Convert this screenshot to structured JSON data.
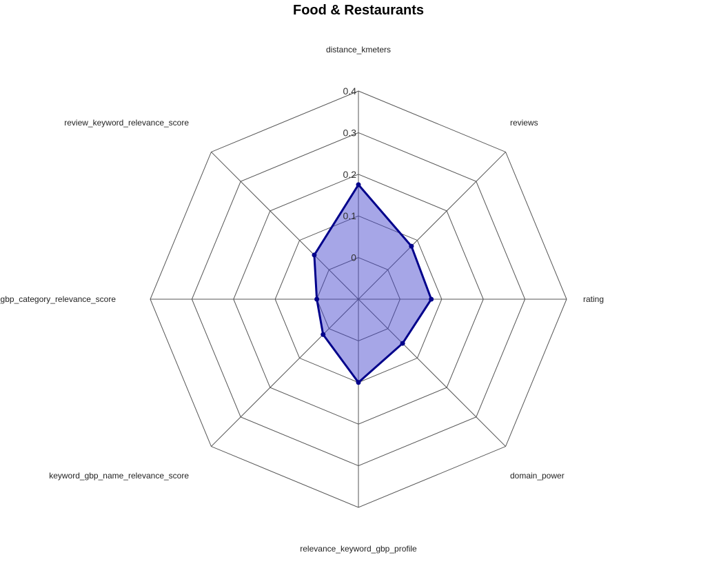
{
  "chart_data": {
    "type": "radar",
    "title": "Food & Restaurants",
    "axes": [
      "distance_kmeters",
      "reviews",
      "rating",
      "domain_power",
      "relevance_keyword_gbp_profile",
      "keyword_gbp_name_relevance_score",
      "keyword_gbp_category_relevance_score",
      "review_keyword_relevance_score"
    ],
    "values": [
      0.175,
      0.08,
      0.075,
      0.05,
      0.1,
      0.02,
      0.0,
      0.05
    ],
    "radial_range": [
      -0.1,
      0.4
    ],
    "radial_ticks": [
      "0",
      "0.1",
      "0.2",
      "0.3",
      "0.4"
    ],
    "grid_levels": [
      -0.1,
      0,
      0.1,
      0.2,
      0.3,
      0.4
    ],
    "line_color": "#00008b",
    "fill_color": "#4444cc",
    "grid_color": "#555555"
  }
}
